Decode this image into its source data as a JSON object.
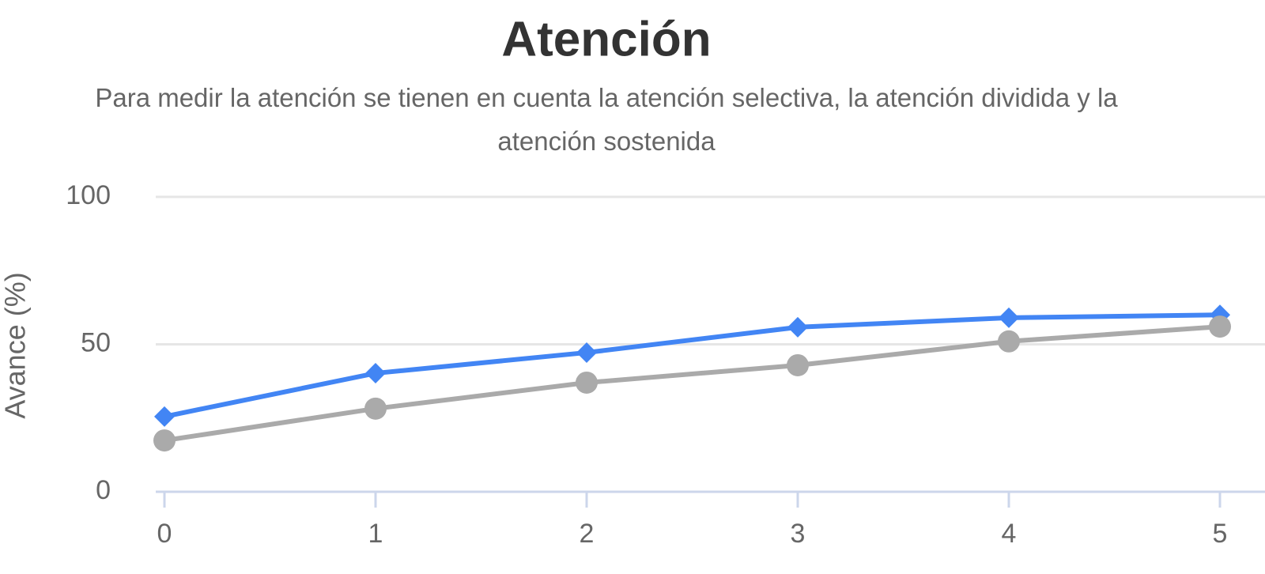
{
  "chart_data": {
    "type": "line",
    "title": "Atención",
    "subtitle": "Para medir la atención se tienen en cuenta la atención selectiva, la atención dividida y la atención sostenida",
    "y_label": "Avance (%)",
    "x": [
      0,
      1,
      2,
      3,
      4,
      5
    ],
    "series": [
      {
        "color": "#4285f4",
        "marker": "diamond",
        "values": [
          25.5,
          40.2,
          47.2,
          55.8,
          59,
          60
        ]
      },
      {
        "color": "#aaaaaa",
        "marker": "circle",
        "values": [
          17.4,
          28.2,
          37,
          42.9,
          51,
          56
        ]
      }
    ],
    "xlim": [
      0,
      5
    ],
    "xticks": [
      0,
      1,
      2,
      3,
      4,
      5
    ],
    "ylim": [
      0,
      100
    ],
    "yticks": [
      0,
      50,
      100
    ],
    "grid": true
  }
}
